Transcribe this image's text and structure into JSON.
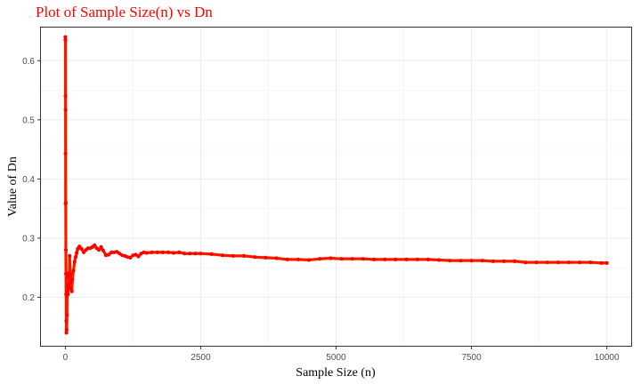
{
  "chart_data": {
    "type": "scatter",
    "title": "Plot of Sample Size(n) vs Dn",
    "xlabel": "Sample Size (n)",
    "ylabel": "Value of Dn",
    "xlim": [
      -450,
      10450
    ],
    "ylim": [
      0.118,
      0.656
    ],
    "xticks": [
      0,
      2500,
      5000,
      7500,
      10000
    ],
    "xtick_labels": [
      "0",
      "2500",
      "5000",
      "7500",
      "10000"
    ],
    "yticks": [
      0.2,
      0.3,
      0.4,
      0.5,
      0.6
    ],
    "ytick_labels": [
      "0.2",
      "0.3",
      "0.4",
      "0.5",
      "0.6"
    ],
    "grid": true,
    "colors": {
      "points": "#ff0000",
      "line": "#ffc020",
      "title": "#ff0000"
    },
    "x": [
      1,
      2,
      3,
      4,
      5,
      6,
      8,
      10,
      12,
      15,
      18,
      20,
      25,
      30,
      35,
      40,
      45,
      50,
      60,
      70,
      80,
      90,
      100,
      110,
      120,
      130,
      150,
      170,
      190,
      210,
      230,
      260,
      300,
      340,
      380,
      420,
      460,
      500,
      540,
      580,
      620,
      660,
      700,
      750,
      800,
      850,
      900,
      950,
      1000,
      1050,
      1100,
      1150,
      1200,
      1250,
      1300,
      1350,
      1400,
      1450,
      1500,
      1600,
      1700,
      1800,
      1900,
      2000,
      2100,
      2200,
      2300,
      2400,
      2500,
      2700,
      2900,
      3100,
      3300,
      3500,
      3700,
      3900,
      4100,
      4300,
      4500,
      4700,
      4900,
      5100,
      5300,
      5500,
      5700,
      5900,
      6100,
      6300,
      6500,
      6700,
      6900,
      7100,
      7300,
      7500,
      7700,
      7900,
      8100,
      8300,
      8500,
      8700,
      8900,
      9100,
      9300,
      9500,
      9700,
      9900,
      10000
    ],
    "y": [
      0.64,
      0.635,
      0.54,
      0.517,
      0.443,
      0.358,
      0.36,
      0.28,
      0.24,
      0.205,
      0.16,
      0.14,
      0.145,
      0.17,
      0.21,
      0.24,
      0.22,
      0.205,
      0.235,
      0.215,
      0.27,
      0.24,
      0.215,
      0.225,
      0.21,
      0.23,
      0.245,
      0.26,
      0.268,
      0.275,
      0.282,
      0.286,
      0.282,
      0.276,
      0.28,
      0.283,
      0.283,
      0.285,
      0.288,
      0.283,
      0.28,
      0.285,
      0.279,
      0.271,
      0.272,
      0.276,
      0.276,
      0.277,
      0.274,
      0.271,
      0.27,
      0.268,
      0.267,
      0.271,
      0.272,
      0.269,
      0.274,
      0.276,
      0.275,
      0.276,
      0.276,
      0.276,
      0.276,
      0.275,
      0.276,
      0.274,
      0.274,
      0.274,
      0.274,
      0.273,
      0.271,
      0.27,
      0.27,
      0.268,
      0.267,
      0.266,
      0.264,
      0.264,
      0.263,
      0.265,
      0.266,
      0.265,
      0.265,
      0.265,
      0.264,
      0.264,
      0.264,
      0.264,
      0.264,
      0.264,
      0.263,
      0.262,
      0.262,
      0.262,
      0.262,
      0.261,
      0.261,
      0.261,
      0.259,
      0.259,
      0.259,
      0.259,
      0.259,
      0.259,
      0.259,
      0.258,
      0.258
    ]
  }
}
